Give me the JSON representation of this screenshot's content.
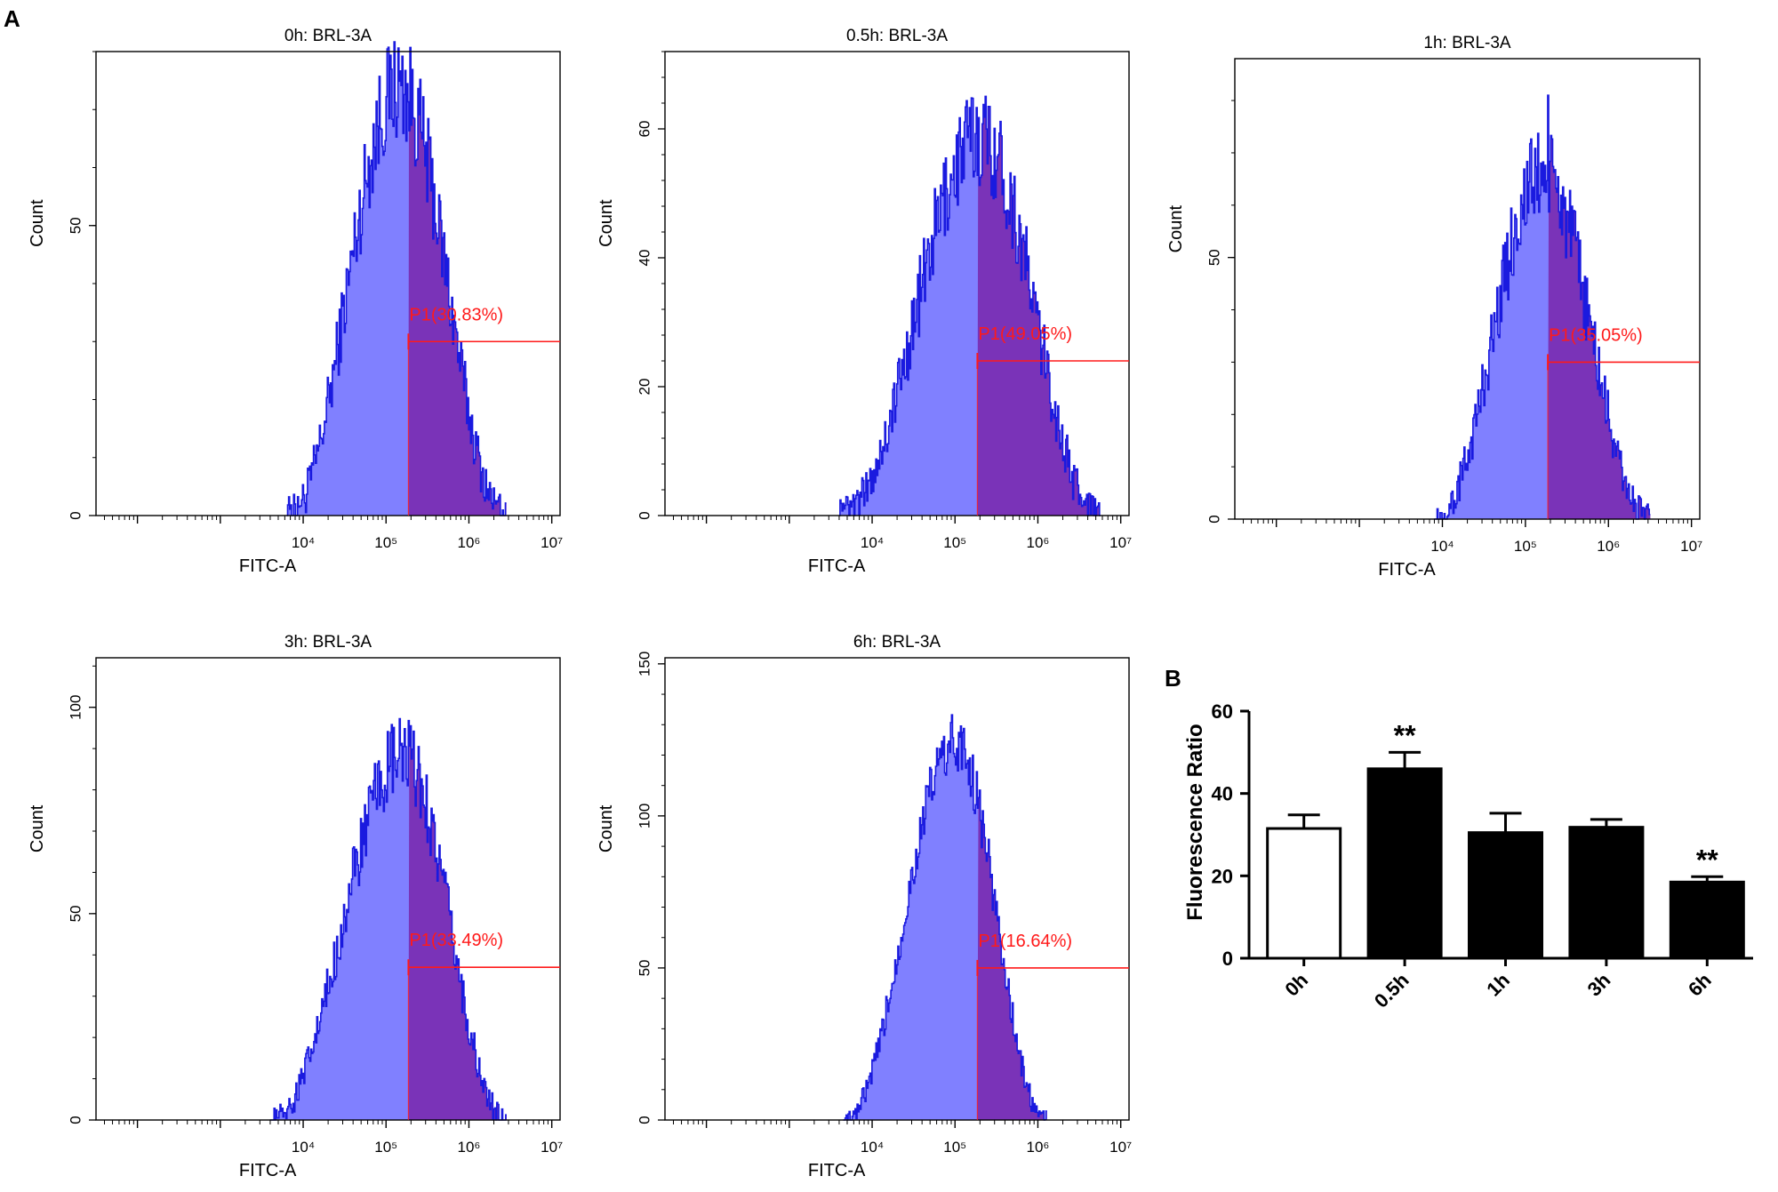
{
  "panel_a_label": "A",
  "panel_b_label": "B",
  "chart_data": [
    {
      "type": "area",
      "title": "0h: BRL-3A",
      "xlabel": "FITC-A",
      "ylabel": "Count",
      "xscale": "log",
      "xlim": [
        1.5,
        7.1
      ],
      "ylim": [
        0,
        80
      ],
      "yticks": [
        0,
        50
      ],
      "xtick_labels": [
        "10⁴",
        "10⁵",
        "10⁶",
        "10⁷"
      ],
      "gate": {
        "name": "P1",
        "start_log": 5.27,
        "label": "P1(30.83%)",
        "y_level": 30
      },
      "profile": {
        "start": 3.8,
        "peak": 5.15,
        "end": 6.45,
        "peak_count": 74,
        "noise": 0.13
      },
      "colors": {
        "fill": "#8080ff",
        "gated_fill": "#7a33b8",
        "line": "#1a1adf",
        "gate": "#ff1a1a"
      }
    },
    {
      "type": "area",
      "title": "0.5h: BRL-3A",
      "xlabel": "FITC-A",
      "ylabel": "Count",
      "xscale": "log",
      "xlim": [
        1.5,
        7.1
      ],
      "ylim": [
        0,
        72
      ],
      "yticks": [
        0,
        20,
        40,
        60
      ],
      "xtick_labels": [
        "10⁴",
        "10⁵",
        "10⁶",
        "10⁷"
      ],
      "gate": {
        "name": "P1",
        "start_log": 5.27,
        "label": "P1(49.05%)",
        "y_level": 24
      },
      "profile": {
        "start": 3.6,
        "peak": 5.3,
        "end": 6.75,
        "peak_count": 59,
        "noise": 0.14
      },
      "colors": {
        "fill": "#8080ff",
        "gated_fill": "#7a33b8",
        "line": "#1a1adf",
        "gate": "#ff1a1a"
      }
    },
    {
      "type": "area",
      "title": "1h: BRL-3A",
      "xlabel": "FITC-A",
      "ylabel": "Count",
      "xscale": "log",
      "xlim": [
        1.5,
        7.1
      ],
      "ylim": [
        0,
        88
      ],
      "yticks": [
        0,
        50
      ],
      "xtick_labels": [
        "10⁴",
        "10⁵",
        "10⁶",
        "10⁷"
      ],
      "gate": {
        "name": "P1",
        "start_log": 5.27,
        "label": "P1(35.05%)",
        "y_level": 30
      },
      "profile": {
        "start": 3.9,
        "peak": 5.2,
        "end": 6.5,
        "peak_count": 66,
        "noise": 0.14,
        "spike": {
          "x": 5.27,
          "count": 81
        }
      },
      "colors": {
        "fill": "#8080ff",
        "gated_fill": "#7a33b8",
        "line": "#1a1adf",
        "gate": "#ff1a1a"
      }
    },
    {
      "type": "area",
      "title": "3h: BRL-3A",
      "xlabel": "FITC-A",
      "ylabel": "Count",
      "xscale": "log",
      "xlim": [
        1.5,
        7.1
      ],
      "ylim": [
        0,
        112
      ],
      "yticks": [
        0,
        50,
        100
      ],
      "xtick_labels": [
        "10⁴",
        "10⁵",
        "10⁶",
        "10⁷"
      ],
      "gate": {
        "name": "P1",
        "start_log": 5.27,
        "label": "P1(33.49%)",
        "y_level": 37
      },
      "profile": {
        "start": 3.6,
        "peak": 5.2,
        "end": 6.45,
        "peak_count": 88,
        "noise": 0.11
      },
      "colors": {
        "fill": "#8080ff",
        "gated_fill": "#7a33b8",
        "line": "#1a1adf",
        "gate": "#ff1a1a"
      }
    },
    {
      "type": "area",
      "title": "6h: BRL-3A",
      "xlabel": "FITC-A",
      "ylabel": "Count",
      "xscale": "log",
      "xlim": [
        1.5,
        7.1
      ],
      "ylim": [
        0,
        152
      ],
      "yticks": [
        0,
        50,
        100,
        150
      ],
      "xtick_labels": [
        "10⁴",
        "10⁵",
        "10⁶",
        "10⁷"
      ],
      "gate": {
        "name": "P1",
        "start_log": 5.27,
        "label": "P1(16.64%)",
        "y_level": 50
      },
      "profile": {
        "start": 3.65,
        "peak": 5.0,
        "end": 6.1,
        "peak_count": 124,
        "noise": 0.08
      },
      "colors": {
        "fill": "#8080ff",
        "gated_fill": "#7a33b8",
        "line": "#1a1adf",
        "gate": "#ff1a1a"
      }
    },
    {
      "type": "bar",
      "categories": [
        "0h",
        "0.5h",
        "1h",
        "3h",
        "6h"
      ],
      "values": [
        31.5,
        46,
        30.5,
        31.8,
        18.5
      ],
      "errors": [
        3.3,
        4.0,
        4.7,
        1.9,
        1.3
      ],
      "annotations": [
        "",
        "**",
        "",
        "",
        "**"
      ],
      "bar_colors": [
        "#ffffff",
        "#000000",
        "#000000",
        "#000000",
        "#000000"
      ],
      "ylabel": "Fluorescence  Ratio",
      "xlabel": "",
      "ylim": [
        0,
        60
      ],
      "yticks": [
        0,
        20,
        40,
        60
      ]
    }
  ]
}
